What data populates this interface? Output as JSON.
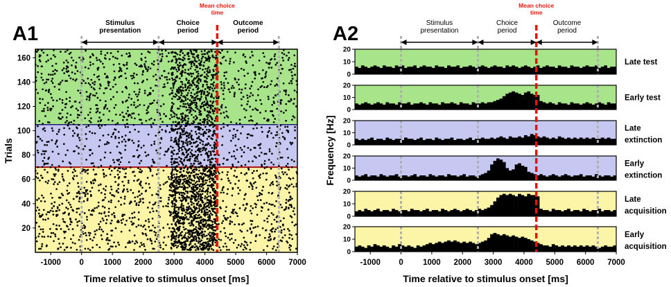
{
  "figure": {
    "panels": [
      {
        "id": "A1",
        "label": "A1",
        "type": "raster",
        "xlabel": "Time relative to stimulus onset [ms]",
        "ylabel": "Trials",
        "x_ticks": [
          -1000,
          0,
          1000,
          2000,
          3000,
          4000,
          5000,
          6000,
          7000
        ],
        "y_ticks": [
          20,
          40,
          60,
          80,
          100,
          120,
          140,
          160
        ],
        "xlim": [
          -1500,
          7000
        ],
        "ylim": [
          0,
          167
        ],
        "phase_labels": [
          "Stimulus\npresentation",
          "Choice\nperiod",
          "Outcome\nperiod"
        ],
        "mean_choice_label": "Mean choice\ntime"
      },
      {
        "id": "A2",
        "label": "A2",
        "type": "psth",
        "xlabel": "Time relative to stimulus onset [ms]",
        "ylabel": "Frequency [Hz]",
        "x_ticks": [
          -1000,
          0,
          1000,
          2000,
          3000,
          4000,
          5000,
          6000,
          7000
        ],
        "y_ticks": [
          0,
          10,
          20
        ],
        "xlim": [
          -1500,
          7000
        ],
        "ylim": [
          0,
          20
        ],
        "phase_labels": [
          "Stimulus\npresentation",
          "Choice\nperiod",
          "Outcome\nperiod"
        ],
        "mean_choice_label": "Mean choice\ntime"
      }
    ]
  },
  "chart_data": [
    {
      "type": "scatter",
      "title": "A1",
      "xlabel": "Time relative to stimulus onset [ms]",
      "ylabel": "Trials",
      "xlim": [
        -1500,
        7000
      ],
      "ylim": [
        0,
        167
      ],
      "phase_boundaries_ms": [
        0,
        2500,
        4400,
        6400
      ],
      "mean_choice_time_ms": 4400,
      "trial_blocks": [
        {
          "name": "acquisition",
          "trials": [
            1,
            70
          ],
          "color": "#fcf5a8"
        },
        {
          "name": "extinction",
          "trials": [
            70,
            105
          ],
          "color": "#c6c8f2"
        },
        {
          "name": "test",
          "trials": [
            105,
            167
          ],
          "color": "#a8e48a"
        }
      ],
      "phase_separator_color": "#b0b0b0",
      "mean_choice_color": "#e8140a",
      "block_border_color": "#b01010"
    },
    {
      "type": "bar",
      "title": "A2",
      "xlabel": "Time relative to stimulus onset [ms]",
      "ylabel": "Frequency [Hz]",
      "xlim": [
        -1500,
        7000
      ],
      "ylim": [
        0,
        20
      ],
      "bin_width_ms": 100,
      "x_start_ms": -1500,
      "phase_boundaries_ms": [
        0,
        2500,
        4400,
        6400
      ],
      "mean_choice_time_ms": 4400,
      "series": [
        {
          "name": "Late test",
          "color": "#a8e48a",
          "values": [
            6,
            5,
            7,
            6,
            5,
            6,
            7,
            6,
            5,
            7,
            6,
            6,
            5,
            7,
            6,
            7,
            5,
            6,
            6,
            7,
            5,
            6,
            7,
            6,
            6,
            5,
            7,
            6,
            6,
            5,
            7,
            6,
            6,
            7,
            5,
            6,
            6,
            7,
            6,
            5,
            6,
            7,
            6,
            5,
            6,
            7,
            6,
            6,
            5,
            7,
            6,
            7,
            6,
            5,
            6,
            7,
            6,
            5,
            6,
            7,
            5,
            6,
            7,
            6,
            6,
            5,
            7,
            6,
            6,
            5,
            7,
            6,
            6,
            5,
            6,
            7,
            6,
            6,
            7,
            5,
            6,
            7,
            5,
            6,
            6
          ]
        },
        {
          "name": "Early test",
          "color": "#a8e48a",
          "values": [
            5,
            4,
            5,
            6,
            5,
            4,
            5,
            6,
            5,
            4,
            6,
            5,
            5,
            4,
            6,
            5,
            5,
            6,
            4,
            5,
            5,
            6,
            5,
            4,
            6,
            5,
            5,
            4,
            6,
            5,
            5,
            6,
            5,
            4,
            6,
            5,
            5,
            4,
            6,
            5,
            5,
            6,
            5,
            6,
            6,
            7,
            8,
            9,
            11,
            13,
            14,
            15,
            14,
            13,
            12,
            14,
            15,
            13,
            12,
            12,
            7,
            6,
            5,
            6,
            5,
            4,
            6,
            5,
            5,
            4,
            6,
            5,
            5,
            4,
            5,
            6,
            5,
            4,
            5,
            6,
            5,
            4,
            6,
            5,
            5
          ]
        },
        {
          "name": "Late extinction",
          "color": "#c6c8f2",
          "values": [
            5,
            4,
            5,
            4,
            5,
            6,
            4,
            5,
            5,
            4,
            6,
            5,
            4,
            5,
            5,
            4,
            6,
            5,
            5,
            4,
            5,
            6,
            4,
            5,
            5,
            4,
            6,
            5,
            4,
            5,
            5,
            6,
            4,
            5,
            5,
            4,
            5,
            6,
            4,
            5,
            5,
            6,
            5,
            5,
            6,
            5,
            6,
            7,
            6,
            5,
            7,
            6,
            6,
            7,
            6,
            8,
            7,
            9,
            8,
            7,
            6,
            7,
            6,
            5,
            6,
            5,
            7,
            6,
            5,
            6,
            5,
            6,
            5,
            6,
            5,
            6,
            5,
            6,
            5,
            5,
            6,
            5,
            6,
            5,
            5
          ]
        },
        {
          "name": "Early extinction",
          "color": "#c6c8f2",
          "values": [
            4,
            3,
            4,
            5,
            3,
            4,
            4,
            3,
            5,
            4,
            3,
            4,
            4,
            5,
            3,
            4,
            4,
            3,
            4,
            5,
            3,
            4,
            4,
            3,
            5,
            4,
            3,
            4,
            4,
            3,
            5,
            4,
            4,
            3,
            4,
            5,
            3,
            4,
            4,
            3,
            4,
            5,
            6,
            8,
            13,
            16,
            18,
            17,
            15,
            10,
            8,
            9,
            13,
            14,
            12,
            11,
            7,
            6,
            5,
            4,
            5,
            4,
            3,
            4,
            5,
            4,
            3,
            4,
            5,
            4,
            3,
            4,
            4,
            5,
            3,
            4,
            4,
            3,
            5,
            4,
            3,
            4,
            4,
            3,
            4
          ]
        },
        {
          "name": "Late acquisition",
          "color": "#fcf5a8",
          "values": [
            4,
            5,
            4,
            6,
            5,
            4,
            5,
            6,
            4,
            5,
            5,
            4,
            6,
            5,
            4,
            5,
            5,
            4,
            6,
            5,
            5,
            4,
            5,
            6,
            4,
            5,
            5,
            4,
            6,
            5,
            4,
            5,
            6,
            5,
            4,
            5,
            6,
            5,
            4,
            5,
            6,
            5,
            6,
            7,
            9,
            12,
            15,
            17,
            18,
            17,
            18,
            17,
            16,
            18,
            17,
            16,
            18,
            17,
            17,
            16,
            6,
            5,
            5,
            4,
            6,
            5,
            5,
            4,
            5,
            6,
            4,
            5,
            5,
            4,
            6,
            5,
            4,
            5,
            5,
            6,
            4,
            5,
            5,
            4,
            5
          ]
        },
        {
          "name": "Early acquisition",
          "color": "#fcf5a8",
          "values": [
            4,
            5,
            4,
            3,
            5,
            4,
            6,
            5,
            4,
            5,
            4,
            3,
            5,
            4,
            6,
            5,
            4,
            5,
            4,
            3,
            5,
            4,
            5,
            6,
            7,
            6,
            7,
            8,
            7,
            8,
            9,
            8,
            9,
            8,
            7,
            8,
            7,
            8,
            7,
            6,
            7,
            8,
            9,
            11,
            14,
            15,
            14,
            13,
            14,
            13,
            12,
            13,
            12,
            11,
            12,
            11,
            10,
            9,
            8,
            7,
            6,
            5,
            5,
            4,
            6,
            5,
            4,
            5,
            4,
            5,
            4,
            5,
            4,
            5,
            4,
            5,
            4,
            5,
            4,
            3,
            4,
            5,
            4,
            4,
            5
          ]
        }
      ]
    }
  ]
}
